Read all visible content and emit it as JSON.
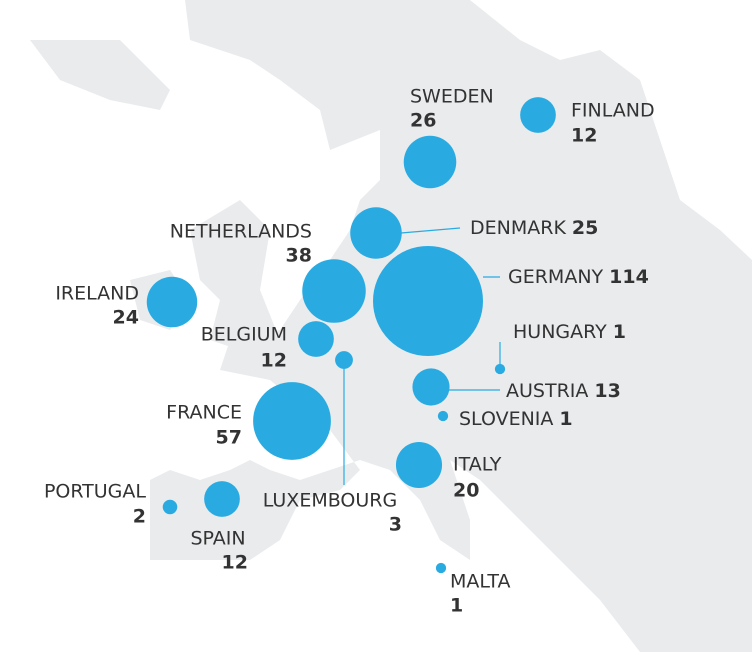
{
  "countries": [
    {
      "name": "SWEDEN",
      "value": 26
    },
    {
      "name": "FINLAND",
      "value": 12
    },
    {
      "name": "DENMARK",
      "value": 25
    },
    {
      "name": "NETHERLANDS",
      "value": 38
    },
    {
      "name": "GERMANY",
      "value": 114
    },
    {
      "name": "IRELAND",
      "value": 24
    },
    {
      "name": "BELGIUM",
      "value": 12
    },
    {
      "name": "LUXEMBOURG",
      "value": 3
    },
    {
      "name": "HUNGARY",
      "value": 1
    },
    {
      "name": "AUSTRIA",
      "value": 13
    },
    {
      "name": "SLOVENIA",
      "value": 1
    },
    {
      "name": "FRANCE",
      "value": 57
    },
    {
      "name": "ITALY",
      "value": 20
    },
    {
      "name": "PORTUGAL",
      "value": 2
    },
    {
      "name": "SPAIN",
      "value": 12
    },
    {
      "name": "MALTA",
      "value": 1
    }
  ]
}
